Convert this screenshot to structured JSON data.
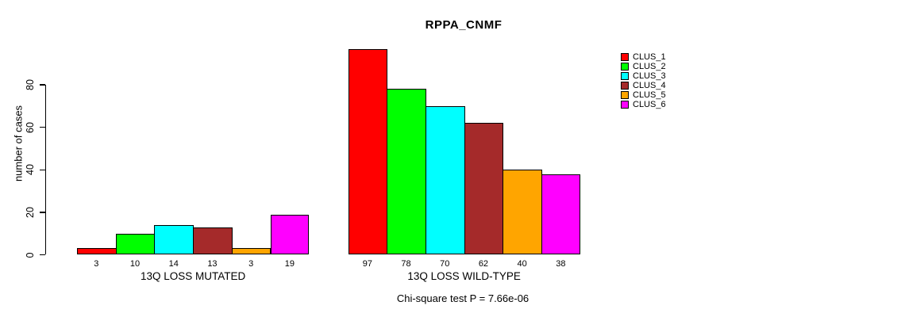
{
  "chart_data": {
    "type": "bar",
    "title": "RPPA_CNMF",
    "ylabel": "number of cases",
    "xlabel": "",
    "ylim": [
      0,
      80
    ],
    "yticks": [
      0,
      20,
      40,
      60,
      80
    ],
    "grid": false,
    "legend_position": "top-right",
    "groups": [
      {
        "label": "13Q LOSS MUTATED",
        "values": [
          3,
          10,
          14,
          13,
          3,
          19
        ]
      },
      {
        "label": "13Q LOSS WILD-TYPE",
        "values": [
          97,
          78,
          70,
          62,
          40,
          38
        ]
      }
    ],
    "series": [
      {
        "name": "CLUS_1",
        "color": "#FF0000",
        "values": [
          3,
          97
        ]
      },
      {
        "name": "CLUS_2",
        "color": "#00FF00",
        "values": [
          10,
          78
        ]
      },
      {
        "name": "CLUS_3",
        "color": "#00FFFF",
        "values": [
          14,
          70
        ]
      },
      {
        "name": "CLUS_4",
        "color": "#A52A2A",
        "values": [
          13,
          62
        ]
      },
      {
        "name": "CLUS_5",
        "color": "#FFA500",
        "values": [
          3,
          40
        ]
      },
      {
        "name": "CLUS_6",
        "color": "#FF00FF",
        "values": [
          19,
          38
        ]
      }
    ],
    "footnote": "Chi-square test P = 7.66e-06",
    "colors": {
      "background": "#FFFFFF",
      "axis": "#000000",
      "bar_border": "#000000",
      "text": "#000000"
    }
  }
}
